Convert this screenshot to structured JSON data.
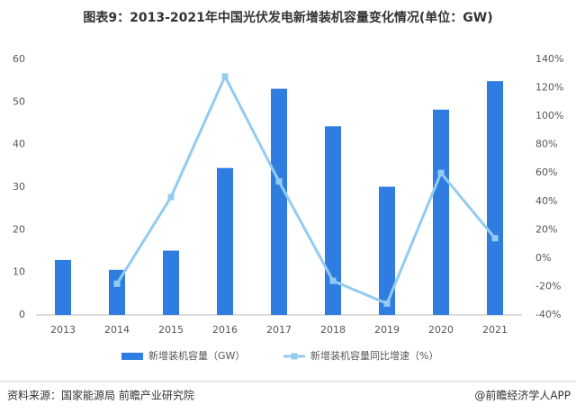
{
  "chart_data": {
    "type": "bar",
    "title": "图表9：2013-2021年中国光伏发电新增装机容量变化情况(单位：GW)",
    "categories": [
      "2013",
      "2014",
      "2015",
      "2016",
      "2017",
      "2018",
      "2019",
      "2020",
      "2021"
    ],
    "series": [
      {
        "name": "新增装机容量（GW）",
        "type": "bar",
        "color": "#2f7de1",
        "values": [
          12.9,
          10.6,
          15.1,
          34.5,
          53.1,
          44.3,
          30.1,
          48.2,
          54.9
        ]
      },
      {
        "name": "新增装机容量同比增速（%）",
        "type": "line",
        "axis": "y2",
        "color": "#93cbf1",
        "values": [
          null,
          -18,
          43,
          128,
          54,
          -16,
          -32,
          60,
          14
        ]
      }
    ],
    "ylim": [
      0,
      60
    ],
    "yticks": [
      0,
      10,
      20,
      30,
      40,
      50,
      60
    ],
    "y2lim": [
      -40,
      140
    ],
    "y2ticks": [
      {
        "value": -40,
        "label": "-40%"
      },
      {
        "value": -20,
        "label": "-20%"
      },
      {
        "value": 0,
        "label": "0%"
      },
      {
        "value": 20,
        "label": "20%"
      },
      {
        "value": 40,
        "label": "40%"
      },
      {
        "value": 60,
        "label": "60%"
      },
      {
        "value": 80,
        "label": "80%"
      },
      {
        "value": 100,
        "label": "100%"
      },
      {
        "value": 120,
        "label": "120%"
      },
      {
        "value": 140,
        "label": "140%"
      }
    ],
    "grid": false,
    "source": "资料来源：国家能源局 前瞻产业研究院",
    "credit": "@前瞻经济学人APP"
  }
}
